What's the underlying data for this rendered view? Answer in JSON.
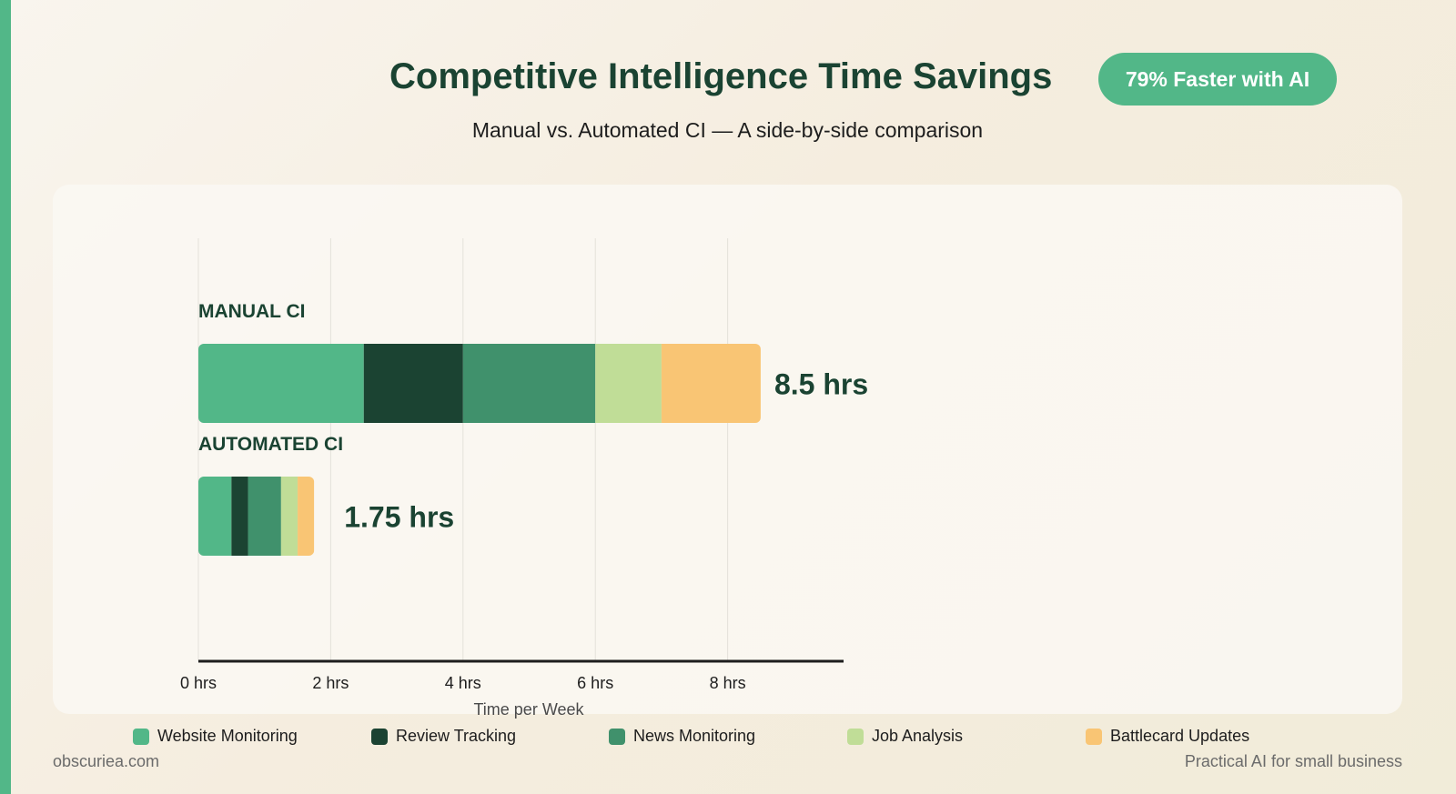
{
  "header": {
    "title": "Competitive Intelligence Time Savings",
    "badge": "79% Faster with AI",
    "subtitle": "Manual vs. Automated CI — A side-by-side comparison"
  },
  "footer": {
    "site": "obscuriea.com",
    "tagline": "Practical AI for small business"
  },
  "colors": {
    "accent": "#52b788",
    "dark_text": "#1a4332"
  },
  "chart_data": {
    "type": "bar",
    "orientation": "horizontal",
    "stacked": true,
    "xlabel": "Time per Week",
    "xlim": [
      0,
      10
    ],
    "ticks": [
      0,
      2,
      4,
      6,
      8
    ],
    "tick_labels": [
      "0 hrs",
      "2 hrs",
      "4 hrs",
      "6 hrs",
      "8 hrs"
    ],
    "grid": true,
    "legend_position": "bottom",
    "categories": [
      "MANUAL CI",
      "AUTOMATED CI"
    ],
    "totals": [
      "8.5 hrs",
      "1.75 hrs"
    ],
    "series": [
      {
        "name": "Website Monitoring",
        "color": "#52b788",
        "values": [
          2.5,
          0.5
        ]
      },
      {
        "name": "Review Tracking",
        "color": "#1b4332",
        "values": [
          1.5,
          0.25
        ]
      },
      {
        "name": "News Monitoring",
        "color": "#40916c",
        "values": [
          2.0,
          0.5
        ]
      },
      {
        "name": "Job Analysis",
        "color": "#c0dd97",
        "values": [
          1.0,
          0.25
        ]
      },
      {
        "name": "Battlecard Updates",
        "color": "#f9c574",
        "values": [
          1.5,
          0.25
        ]
      }
    ]
  }
}
